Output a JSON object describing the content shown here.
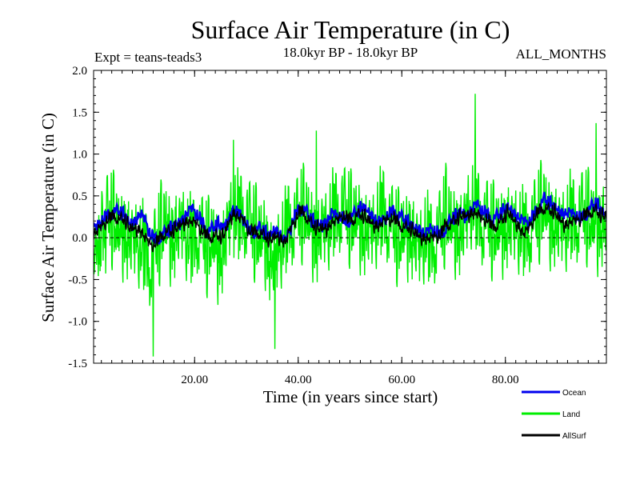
{
  "chart_data": {
    "type": "line",
    "title": "Surface Air Temperature (in C)",
    "subtitle_left": "Expt = teans-teads3",
    "subtitle_center": "18.0kyr BP - 18.0kyr BP",
    "subtitle_right": "ALL_MONTHS",
    "xlabel": "Time (in years since start)",
    "ylabel": "Surface Air Temperature (in C)",
    "xlim": [
      0.5,
      99.5
    ],
    "ylim": [
      -1.5,
      2.0
    ],
    "xticks": [
      20,
      40,
      60,
      80
    ],
    "xtick_labels": [
      "20.00",
      "40.00",
      "60.00",
      "80.00"
    ],
    "yticks": [
      -1.5,
      -1.0,
      -0.5,
      0.0,
      0.5,
      1.0,
      1.5,
      2.0
    ],
    "ytick_labels": [
      "-1.5",
      "-1.0",
      "-0.5",
      "0.0",
      "0.5",
      "1.0",
      "1.5",
      "2.0"
    ],
    "zero_line": true,
    "legend": {
      "placement": "bottom-right",
      "entries": [
        {
          "name": "Ocean",
          "color": "#0000ee"
        },
        {
          "name": "Land",
          "color": "#00ee00"
        },
        {
          "name": "AllSurf",
          "color": "#000000"
        }
      ]
    },
    "series": [
      {
        "name": "Land",
        "color": "#00ee00",
        "sampling": "monthly (approx., noisy envelope)",
        "yearly_approx": [
          -0.2,
          0.0,
          0.1,
          0.2,
          0.1,
          0.0,
          0.1,
          0.0,
          -0.1,
          -0.2,
          -0.3,
          -0.4,
          -0.2,
          0.0,
          0.1,
          0.0,
          0.1,
          0.1,
          -0.1,
          -0.2,
          0.0,
          -0.1,
          -0.2,
          -0.1,
          -0.2,
          -0.1,
          0.1,
          0.2,
          0.1,
          0.2,
          0.1,
          0.0,
          -0.1,
          0.0,
          -0.2,
          -0.3,
          -0.2,
          -0.1,
          0.1,
          0.1,
          0.2,
          0.2,
          0.1,
          0.0,
          0.1,
          0.0,
          0.1,
          0.2,
          0.3,
          0.2,
          0.1,
          0.2,
          0.1,
          0.1,
          0.0,
          0.1,
          0.2,
          0.1,
          0.0,
          -0.1,
          0.0,
          0.1,
          0.0,
          -0.2,
          -0.1,
          -0.2,
          -0.1,
          0.0,
          0.2,
          0.1,
          0.1,
          0.1,
          0.2,
          0.3,
          0.2,
          0.1,
          0.1,
          0.0,
          0.0,
          0.1,
          0.2,
          0.1,
          0.0,
          -0.1,
          0.0,
          0.1,
          0.2,
          0.3,
          0.2,
          0.2,
          0.1,
          0.0,
          0.1,
          0.1,
          0.2,
          0.2,
          0.1,
          0.1,
          0.2
        ],
        "peaks": [
          [
            12.0,
            -1.42
          ],
          [
            27.5,
            1.17
          ],
          [
            35.5,
            -1.33
          ],
          [
            43.5,
            1.28
          ],
          [
            74.2,
            1.72
          ],
          [
            97.5,
            1.37
          ]
        ]
      },
      {
        "name": "Ocean",
        "color": "#0000ee",
        "sampling": "monthly (approx.)",
        "yearly_approx": [
          0.1,
          0.15,
          0.2,
          0.25,
          0.3,
          0.3,
          0.25,
          0.15,
          0.2,
          0.3,
          0.2,
          0.0,
          -0.05,
          0.0,
          0.05,
          0.1,
          0.15,
          0.2,
          0.3,
          0.35,
          0.25,
          0.15,
          0.05,
          0.1,
          0.15,
          0.1,
          0.2,
          0.35,
          0.3,
          0.2,
          0.05,
          0.05,
          0.1,
          0.05,
          0.0,
          0.1,
          0.05,
          -0.05,
          0.1,
          0.25,
          0.35,
          0.3,
          0.2,
          0.15,
          0.15,
          0.2,
          0.3,
          0.25,
          0.2,
          0.15,
          0.25,
          0.3,
          0.35,
          0.3,
          0.25,
          0.2,
          0.2,
          0.25,
          0.3,
          0.25,
          0.2,
          0.15,
          0.1,
          0.1,
          0.05,
          0.1,
          0.05,
          0.0,
          0.1,
          0.2,
          0.25,
          0.3,
          0.25,
          0.35,
          0.4,
          0.3,
          0.25,
          0.2,
          0.25,
          0.3,
          0.35,
          0.3,
          0.25,
          0.2,
          0.15,
          0.25,
          0.35,
          0.45,
          0.4,
          0.35,
          0.3,
          0.3,
          0.3,
          0.25,
          0.2,
          0.25,
          0.35,
          0.4,
          0.3,
          0.25
        ]
      },
      {
        "name": "AllSurf",
        "color": "#000000",
        "sampling": "monthly (approx.)",
        "yearly_approx": [
          0.05,
          0.1,
          0.15,
          0.2,
          0.25,
          0.2,
          0.2,
          0.1,
          0.1,
          0.1,
          0.0,
          -0.1,
          -0.1,
          0.0,
          0.05,
          0.05,
          0.1,
          0.15,
          0.2,
          0.2,
          0.15,
          0.05,
          0.0,
          0.0,
          0.0,
          0.0,
          0.15,
          0.3,
          0.25,
          0.2,
          0.05,
          0.05,
          0.05,
          0.0,
          -0.05,
          0.0,
          0.0,
          -0.05,
          0.1,
          0.2,
          0.3,
          0.25,
          0.15,
          0.1,
          0.1,
          0.1,
          0.2,
          0.2,
          0.25,
          0.2,
          0.2,
          0.25,
          0.25,
          0.2,
          0.15,
          0.15,
          0.2,
          0.2,
          0.2,
          0.15,
          0.1,
          0.1,
          0.05,
          0.0,
          0.0,
          0.0,
          0.0,
          0.0,
          0.15,
          0.15,
          0.2,
          0.25,
          0.25,
          0.3,
          0.3,
          0.2,
          0.2,
          0.1,
          0.15,
          0.2,
          0.3,
          0.2,
          0.15,
          0.05,
          0.1,
          0.2,
          0.3,
          0.35,
          0.3,
          0.3,
          0.2,
          0.15,
          0.2,
          0.2,
          0.2,
          0.25,
          0.3,
          0.3,
          0.25,
          0.25
        ]
      }
    ]
  }
}
